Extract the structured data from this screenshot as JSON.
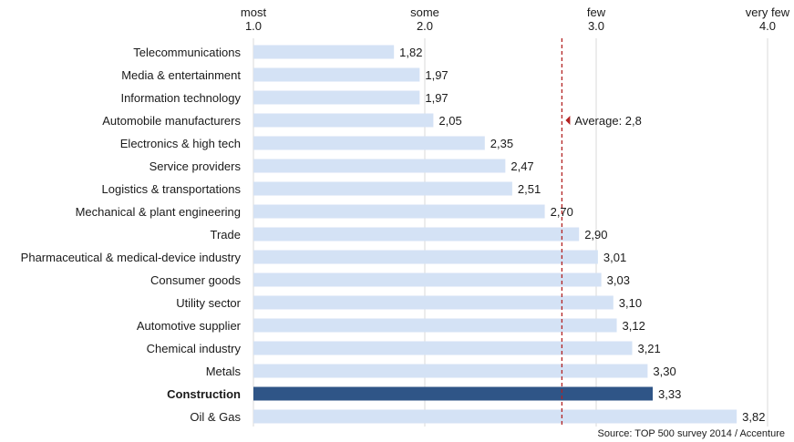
{
  "chart_data": {
    "type": "bar",
    "orientation": "horizontal",
    "categories": [
      "Telecommunications",
      "Media & entertainment",
      "Information technology",
      "Automobile manufacturers",
      "Electronics & high tech",
      "Service providers",
      "Logistics & transportations",
      "Mechanical & plant engineering",
      "Trade",
      "Pharmaceutical & medical-device industry",
      "Consumer goods",
      "Utility sector",
      "Automotive supplier",
      "Chemical industry",
      "Metals",
      "Construction",
      "Oil & Gas"
    ],
    "values": [
      1.82,
      1.97,
      1.97,
      2.05,
      2.35,
      2.47,
      2.51,
      2.7,
      2.9,
      3.01,
      3.03,
      3.1,
      3.12,
      3.21,
      3.3,
      3.33,
      3.82
    ],
    "value_labels": [
      "1,82",
      "1,97",
      "1,97",
      "2,05",
      "2,35",
      "2,47",
      "2,51",
      "2,70",
      "2,90",
      "3,01",
      "3,03",
      "3,10",
      "3,12",
      "3,21",
      "3,30",
      "3,33",
      "3,82"
    ],
    "highlight_category": "Construction",
    "xlim": [
      1.0,
      4.0
    ],
    "x_ticks": [
      {
        "value": 1.0,
        "word": "most",
        "number": "1.0"
      },
      {
        "value": 2.0,
        "word": "some",
        "number": "2.0"
      },
      {
        "value": 3.0,
        "word": "few",
        "number": "3.0"
      },
      {
        "value": 4.0,
        "word": "very few",
        "number": "4.0"
      }
    ],
    "x_axis_position": "top",
    "grid": true,
    "average": {
      "value": 2.8,
      "label": "Average: 2,8"
    },
    "source": "Source: TOP 500 survey 2014 / Accenture",
    "colors": {
      "bar": "#d4e2f5",
      "highlight_bar": "#2f5587",
      "average_line": "#b22222",
      "grid": "#d9d9d9"
    }
  }
}
